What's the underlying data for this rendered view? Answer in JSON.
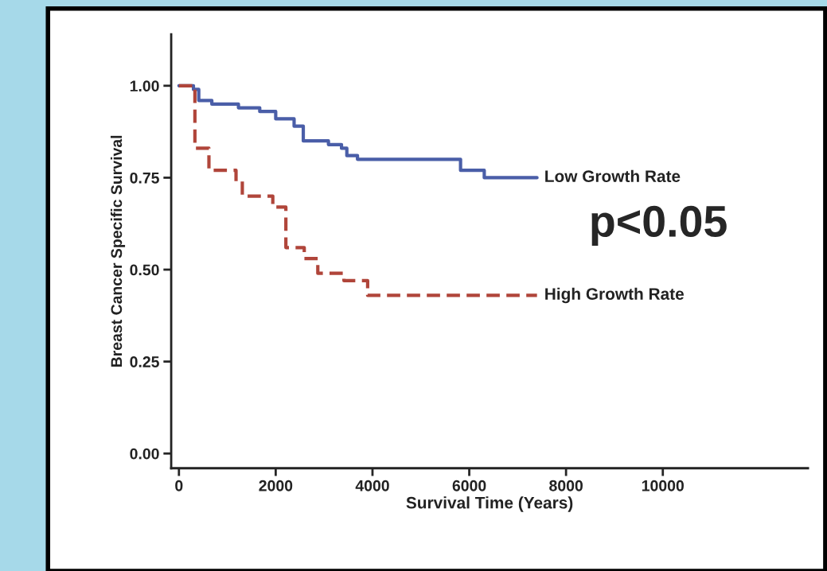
{
  "chart_data": {
    "type": "step",
    "xlabel": "Survival Time (Years)",
    "ylabel": "Breast Cancer Specific Survival",
    "xlim": [
      -160,
      13000
    ],
    "xticks": [
      0,
      2000,
      4000,
      6000,
      8000,
      10000
    ],
    "ylim": [
      -0.04,
      1.14
    ],
    "yticks": [
      {
        "value": 0,
        "label": "0.00"
      },
      {
        "value": 0.25,
        "label": "0.25"
      },
      {
        "value": 0.5,
        "label": "0.50"
      },
      {
        "value": 0.75,
        "label": "0.75"
      },
      {
        "value": 1,
        "label": "1.00"
      }
    ],
    "grid": false,
    "legend": false,
    "series": [
      {
        "name": "Low Growth Rate",
        "color": "#4a5ea8",
        "line_style": "solid",
        "x": [
          0,
          300,
          410,
          680,
          1230,
          1670,
          2000,
          2380,
          2570,
          2870,
          3090,
          3360,
          3470,
          3690,
          5550,
          5820,
          6260,
          6310,
          7400
        ],
        "values": [
          1.0,
          0.99,
          0.96,
          0.95,
          0.94,
          0.93,
          0.91,
          0.89,
          0.85,
          0.85,
          0.84,
          0.83,
          0.81,
          0.8,
          0.8,
          0.77,
          0.77,
          0.75,
          0.75
        ]
      },
      {
        "name": "High Growth Rate",
        "color": "#b0453a",
        "line_style": "dashed",
        "x": [
          0,
          330,
          620,
          1180,
          1310,
          1860,
          1940,
          2210,
          2590,
          2870,
          3410,
          3900,
          7400
        ],
        "values": [
          1.0,
          0.83,
          0.77,
          0.74,
          0.7,
          0.7,
          0.67,
          0.56,
          0.53,
          0.49,
          0.47,
          0.43,
          0.43
        ]
      }
    ],
    "annotations": [
      "p<0.05"
    ]
  }
}
